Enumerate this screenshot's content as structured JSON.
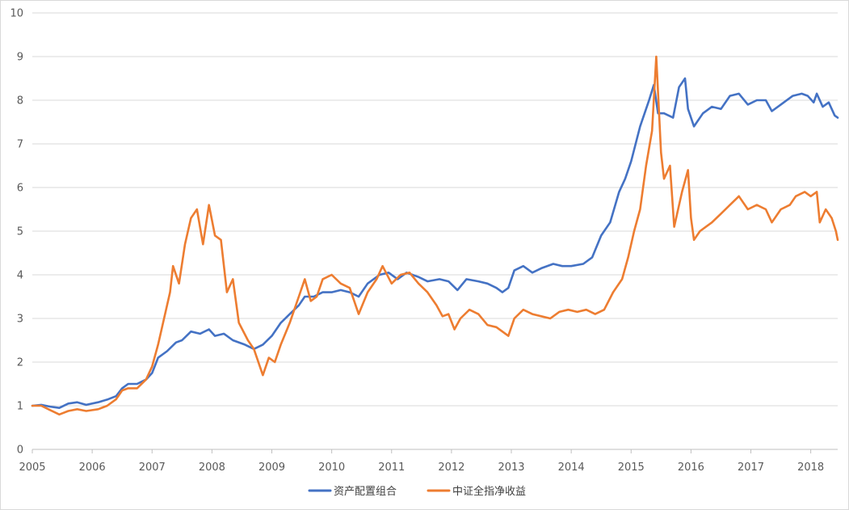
{
  "chart_data": {
    "type": "line",
    "title": "",
    "xlabel": "",
    "ylabel": "",
    "xlim": [
      2005,
      2018.45
    ],
    "ylim": [
      0,
      10
    ],
    "y_ticks": [
      "0",
      "1",
      "2",
      "3",
      "4",
      "5",
      "6",
      "7",
      "8",
      "9",
      "10"
    ],
    "x_ticks": [
      "2005",
      "2006",
      "2007",
      "2008",
      "2009",
      "2010",
      "2011",
      "2012",
      "2013",
      "2014",
      "2015",
      "2016",
      "2017",
      "2018"
    ],
    "grid": "horizontal",
    "legend_position": "bottom",
    "series": [
      {
        "name": "资产配置组合",
        "color": "#4472C4",
        "points": [
          [
            2005.0,
            1.0
          ],
          [
            2005.15,
            1.02
          ],
          [
            2005.3,
            0.98
          ],
          [
            2005.45,
            0.95
          ],
          [
            2005.6,
            1.05
          ],
          [
            2005.75,
            1.08
          ],
          [
            2005.9,
            1.02
          ],
          [
            2006.1,
            1.08
          ],
          [
            2006.25,
            1.14
          ],
          [
            2006.4,
            1.22
          ],
          [
            2006.5,
            1.4
          ],
          [
            2006.6,
            1.5
          ],
          [
            2006.75,
            1.5
          ],
          [
            2006.9,
            1.6
          ],
          [
            2007.0,
            1.75
          ],
          [
            2007.1,
            2.1
          ],
          [
            2007.25,
            2.25
          ],
          [
            2007.4,
            2.45
          ],
          [
            2007.5,
            2.5
          ],
          [
            2007.65,
            2.7
          ],
          [
            2007.8,
            2.65
          ],
          [
            2007.95,
            2.75
          ],
          [
            2008.05,
            2.6
          ],
          [
            2008.2,
            2.65
          ],
          [
            2008.35,
            2.5
          ],
          [
            2008.55,
            2.4
          ],
          [
            2008.7,
            2.3
          ],
          [
            2008.85,
            2.4
          ],
          [
            2009.0,
            2.6
          ],
          [
            2009.15,
            2.9
          ],
          [
            2009.3,
            3.1
          ],
          [
            2009.45,
            3.3
          ],
          [
            2009.55,
            3.5
          ],
          [
            2009.7,
            3.5
          ],
          [
            2009.85,
            3.6
          ],
          [
            2010.0,
            3.6
          ],
          [
            2010.15,
            3.65
          ],
          [
            2010.3,
            3.6
          ],
          [
            2010.45,
            3.5
          ],
          [
            2010.6,
            3.8
          ],
          [
            2010.8,
            4.0
          ],
          [
            2010.95,
            4.05
          ],
          [
            2011.1,
            3.9
          ],
          [
            2011.25,
            4.05
          ],
          [
            2011.45,
            3.95
          ],
          [
            2011.6,
            3.85
          ],
          [
            2011.8,
            3.9
          ],
          [
            2011.95,
            3.85
          ],
          [
            2012.1,
            3.65
          ],
          [
            2012.25,
            3.9
          ],
          [
            2012.45,
            3.85
          ],
          [
            2012.6,
            3.8
          ],
          [
            2012.75,
            3.7
          ],
          [
            2012.85,
            3.6
          ],
          [
            2012.95,
            3.7
          ],
          [
            2013.05,
            4.1
          ],
          [
            2013.2,
            4.2
          ],
          [
            2013.35,
            4.05
          ],
          [
            2013.5,
            4.15
          ],
          [
            2013.7,
            4.25
          ],
          [
            2013.85,
            4.2
          ],
          [
            2014.0,
            4.2
          ],
          [
            2014.2,
            4.25
          ],
          [
            2014.35,
            4.4
          ],
          [
            2014.5,
            4.9
          ],
          [
            2014.65,
            5.2
          ],
          [
            2014.8,
            5.9
          ],
          [
            2014.9,
            6.2
          ],
          [
            2015.0,
            6.6
          ],
          [
            2015.15,
            7.4
          ],
          [
            2015.3,
            8.0
          ],
          [
            2015.38,
            8.35
          ],
          [
            2015.45,
            7.7
          ],
          [
            2015.55,
            7.7
          ],
          [
            2015.7,
            7.6
          ],
          [
            2015.8,
            8.3
          ],
          [
            2015.9,
            8.5
          ],
          [
            2015.95,
            7.8
          ],
          [
            2016.05,
            7.4
          ],
          [
            2016.2,
            7.7
          ],
          [
            2016.35,
            7.85
          ],
          [
            2016.5,
            7.8
          ],
          [
            2016.65,
            8.1
          ],
          [
            2016.8,
            8.15
          ],
          [
            2016.95,
            7.9
          ],
          [
            2017.1,
            8.0
          ],
          [
            2017.25,
            8.0
          ],
          [
            2017.35,
            7.75
          ],
          [
            2017.5,
            7.9
          ],
          [
            2017.7,
            8.1
          ],
          [
            2017.85,
            8.15
          ],
          [
            2017.95,
            8.1
          ],
          [
            2018.05,
            7.95
          ],
          [
            2018.1,
            8.15
          ],
          [
            2018.2,
            7.85
          ],
          [
            2018.3,
            7.95
          ],
          [
            2018.4,
            7.65
          ],
          [
            2018.45,
            7.6
          ]
        ]
      },
      {
        "name": "中证全指净收益",
        "color": "#ED7D31",
        "points": [
          [
            2005.0,
            1.0
          ],
          [
            2005.15,
            1.0
          ],
          [
            2005.3,
            0.9
          ],
          [
            2005.45,
            0.8
          ],
          [
            2005.6,
            0.88
          ],
          [
            2005.75,
            0.92
          ],
          [
            2005.9,
            0.88
          ],
          [
            2006.1,
            0.92
          ],
          [
            2006.25,
            1.0
          ],
          [
            2006.4,
            1.15
          ],
          [
            2006.5,
            1.35
          ],
          [
            2006.6,
            1.4
          ],
          [
            2006.75,
            1.4
          ],
          [
            2006.9,
            1.6
          ],
          [
            2007.0,
            1.9
          ],
          [
            2007.1,
            2.4
          ],
          [
            2007.2,
            3.0
          ],
          [
            2007.3,
            3.6
          ],
          [
            2007.35,
            4.2
          ],
          [
            2007.45,
            3.8
          ],
          [
            2007.55,
            4.7
          ],
          [
            2007.65,
            5.3
          ],
          [
            2007.75,
            5.5
          ],
          [
            2007.85,
            4.7
          ],
          [
            2007.95,
            5.6
          ],
          [
            2008.05,
            4.9
          ],
          [
            2008.15,
            4.8
          ],
          [
            2008.25,
            3.6
          ],
          [
            2008.35,
            3.9
          ],
          [
            2008.45,
            2.9
          ],
          [
            2008.6,
            2.5
          ],
          [
            2008.7,
            2.3
          ],
          [
            2008.8,
            1.9
          ],
          [
            2008.85,
            1.7
          ],
          [
            2008.95,
            2.1
          ],
          [
            2009.05,
            2.0
          ],
          [
            2009.15,
            2.4
          ],
          [
            2009.3,
            2.9
          ],
          [
            2009.45,
            3.5
          ],
          [
            2009.55,
            3.9
          ],
          [
            2009.65,
            3.4
          ],
          [
            2009.75,
            3.5
          ],
          [
            2009.85,
            3.9
          ],
          [
            2010.0,
            4.0
          ],
          [
            2010.15,
            3.8
          ],
          [
            2010.3,
            3.7
          ],
          [
            2010.45,
            3.1
          ],
          [
            2010.6,
            3.6
          ],
          [
            2010.75,
            3.9
          ],
          [
            2010.85,
            4.2
          ],
          [
            2011.0,
            3.8
          ],
          [
            2011.15,
            4.0
          ],
          [
            2011.3,
            4.05
          ],
          [
            2011.45,
            3.8
          ],
          [
            2011.6,
            3.6
          ],
          [
            2011.75,
            3.3
          ],
          [
            2011.85,
            3.05
          ],
          [
            2011.95,
            3.1
          ],
          [
            2012.05,
            2.75
          ],
          [
            2012.15,
            3.0
          ],
          [
            2012.3,
            3.2
          ],
          [
            2012.45,
            3.1
          ],
          [
            2012.6,
            2.85
          ],
          [
            2012.75,
            2.8
          ],
          [
            2012.85,
            2.7
          ],
          [
            2012.95,
            2.6
          ],
          [
            2013.05,
            3.0
          ],
          [
            2013.2,
            3.2
          ],
          [
            2013.35,
            3.1
          ],
          [
            2013.5,
            3.05
          ],
          [
            2013.65,
            3.0
          ],
          [
            2013.8,
            3.15
          ],
          [
            2013.95,
            3.2
          ],
          [
            2014.1,
            3.15
          ],
          [
            2014.25,
            3.2
          ],
          [
            2014.4,
            3.1
          ],
          [
            2014.55,
            3.2
          ],
          [
            2014.7,
            3.6
          ],
          [
            2014.85,
            3.9
          ],
          [
            2014.95,
            4.4
          ],
          [
            2015.05,
            5.0
          ],
          [
            2015.15,
            5.5
          ],
          [
            2015.25,
            6.5
          ],
          [
            2015.35,
            7.3
          ],
          [
            2015.42,
            9.0
          ],
          [
            2015.5,
            6.8
          ],
          [
            2015.55,
            6.2
          ],
          [
            2015.65,
            6.5
          ],
          [
            2015.72,
            5.1
          ],
          [
            2015.85,
            5.9
          ],
          [
            2015.95,
            6.4
          ],
          [
            2016.0,
            5.3
          ],
          [
            2016.05,
            4.8
          ],
          [
            2016.15,
            5.0
          ],
          [
            2016.25,
            5.1
          ],
          [
            2016.35,
            5.2
          ],
          [
            2016.5,
            5.4
          ],
          [
            2016.65,
            5.6
          ],
          [
            2016.8,
            5.8
          ],
          [
            2016.95,
            5.5
          ],
          [
            2017.1,
            5.6
          ],
          [
            2017.25,
            5.5
          ],
          [
            2017.35,
            5.2
          ],
          [
            2017.5,
            5.5
          ],
          [
            2017.65,
            5.6
          ],
          [
            2017.75,
            5.8
          ],
          [
            2017.9,
            5.9
          ],
          [
            2018.0,
            5.8
          ],
          [
            2018.1,
            5.9
          ],
          [
            2018.15,
            5.2
          ],
          [
            2018.25,
            5.5
          ],
          [
            2018.35,
            5.3
          ],
          [
            2018.42,
            5.0
          ],
          [
            2018.45,
            4.8
          ]
        ]
      }
    ]
  }
}
